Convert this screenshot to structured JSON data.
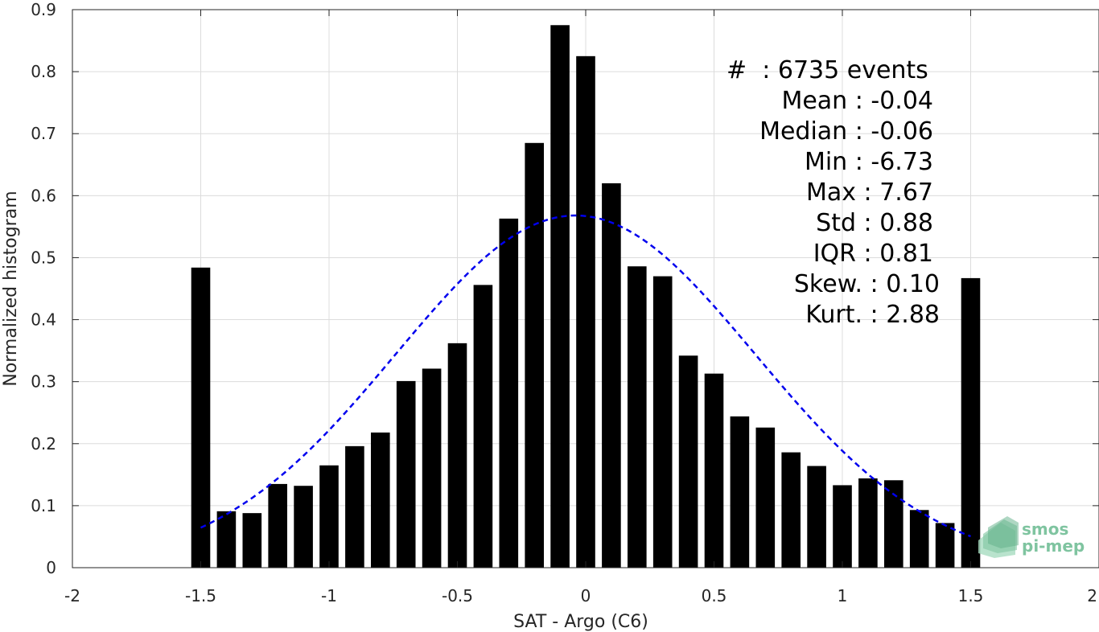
{
  "chart_data": {
    "type": "bar",
    "xlabel": "SAT - Argo (C6)",
    "ylabel": "Normalized histogram",
    "xlim": [
      -2,
      2
    ],
    "ylim": [
      0,
      0.9
    ],
    "xticks": [
      -2,
      -1.5,
      -1,
      -0.5,
      0,
      0.5,
      1,
      1.5,
      2
    ],
    "xtick_labels": [
      "-2",
      "-1.5",
      "-1",
      "-0.5",
      "0",
      "0.5",
      "1",
      "1.5",
      "2"
    ],
    "yticks": [
      0,
      0.1,
      0.2,
      0.3,
      0.4,
      0.5,
      0.6,
      0.7,
      0.8,
      0.9
    ],
    "ytick_labels": [
      "0",
      "0.1",
      "0.2",
      "0.3",
      "0.4",
      "0.5",
      "0.6",
      "0.7",
      "0.8",
      "0.9"
    ],
    "grid": true,
    "bar_color": "#000000",
    "bar_centers": [
      -1.5,
      -1.4,
      -1.3,
      -1.2,
      -1.1,
      -1.0,
      -0.9,
      -0.8,
      -0.7,
      -0.6,
      -0.5,
      -0.4,
      -0.3,
      -0.2,
      -0.1,
      0.0,
      0.1,
      0.2,
      0.3,
      0.4,
      0.5,
      0.6,
      0.7,
      0.8,
      0.9,
      1.0,
      1.1,
      1.2,
      1.3,
      1.4,
      1.5
    ],
    "values": [
      0.484,
      0.091,
      0.088,
      0.135,
      0.132,
      0.165,
      0.196,
      0.218,
      0.301,
      0.321,
      0.362,
      0.456,
      0.563,
      0.685,
      0.875,
      0.825,
      0.62,
      0.486,
      0.47,
      0.342,
      0.313,
      0.244,
      0.226,
      0.186,
      0.164,
      0.133,
      0.144,
      0.141,
      0.093,
      0.072,
      0.467
    ],
    "fit_curve": {
      "type": "gaussian",
      "style": "dashed",
      "color": "#0000ee",
      "mean": -0.04,
      "std": 0.7,
      "peak": 0.568,
      "x_range": [
        -1.5,
        1.5
      ]
    },
    "stats_box": {
      "placement": "top-right",
      "lines": [
        "#  : 6735 events",
        "Mean : -0.04",
        "Median : -0.06",
        "Min : -6.73",
        "Max : 7.67",
        "Std : 0.88",
        "IQR : 0.81",
        "Skew. : 0.10",
        "Kurt. : 2.88"
      ]
    }
  },
  "logo": {
    "line1": "smos",
    "line2": "pi-mep",
    "color": "#7fc4a0"
  }
}
